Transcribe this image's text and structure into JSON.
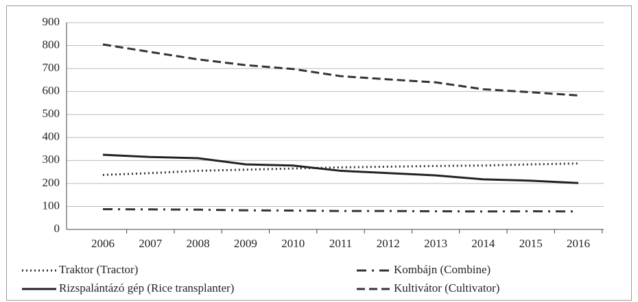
{
  "chart_data": {
    "type": "line",
    "categories": [
      "2006",
      "2007",
      "2008",
      "2009",
      "2010",
      "2011",
      "2012",
      "2013",
      "2014",
      "2015",
      "2016"
    ],
    "series": [
      {
        "name": "Traktor (Tractor)",
        "color": "#333333",
        "dash": "dotted",
        "values": [
          237,
          245,
          255,
          260,
          265,
          270,
          273,
          276,
          278,
          283,
          287
        ]
      },
      {
        "name": "Kombájn (Combine)",
        "color": "#333333",
        "dash": "dash-dot",
        "values": [
          88,
          87,
          86,
          83,
          82,
          80,
          80,
          79,
          78,
          79,
          78
        ]
      },
      {
        "name": "Rizspalántázó gép (Rice transplanter)",
        "color": "#222222",
        "dash": "solid",
        "values": [
          325,
          315,
          310,
          283,
          278,
          255,
          245,
          235,
          218,
          212,
          202
        ]
      },
      {
        "name": "Kultivátor (Cultivator)",
        "color": "#333333",
        "dash": "dashed",
        "values": [
          805,
          772,
          740,
          715,
          698,
          667,
          653,
          640,
          610,
          597,
          583
        ]
      }
    ],
    "ylim": [
      0,
      900
    ],
    "yticks": [
      0,
      100,
      200,
      300,
      400,
      500,
      600,
      700,
      800,
      900
    ],
    "grid": true
  }
}
